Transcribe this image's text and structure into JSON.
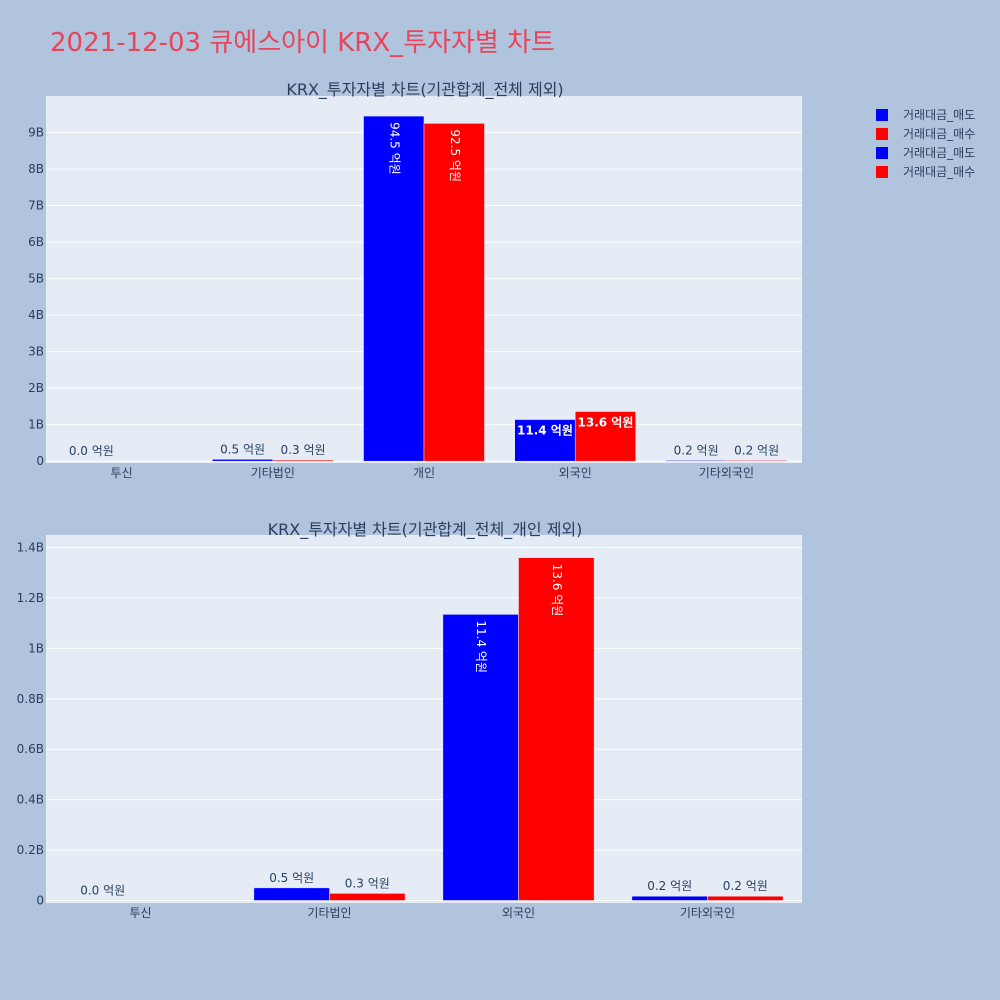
{
  "page_title": "2021-12-03 큐에스아이 KRX_투자자별 차트",
  "legend": [
    {
      "label": "거래대금_매도",
      "color": "#0000ff"
    },
    {
      "label": "거래대금_매수",
      "color": "#ff0000"
    },
    {
      "label": "거래대금_매도",
      "color": "#0000ff"
    },
    {
      "label": "거래대금_매수",
      "color": "#ff0000"
    }
  ],
  "chart_data": [
    {
      "type": "bar",
      "title": "KRX_투자자별 차트(기관합계_전체 제외)",
      "categories": [
        "투신",
        "기타법인",
        "개인",
        "외국인",
        "기타외국인"
      ],
      "series": [
        {
          "name": "거래대금_매도",
          "color": "#0000ff",
          "values": [
            0.0,
            0.05,
            9.45,
            1.14,
            0.02
          ],
          "labels": [
            "0.0 억원",
            "0.5 억원",
            "94.5 억원",
            "11.4 억원",
            "0.2 억원"
          ]
        },
        {
          "name": "거래대금_매수",
          "color": "#ff0000",
          "values": [
            0.0,
            0.03,
            9.25,
            1.36,
            0.02
          ],
          "labels": [
            "",
            "0.3 억원",
            "92.5 억원",
            "13.6 억원",
            "0.2 억원"
          ]
        }
      ],
      "ylim": [
        -0.05,
        10.0
      ],
      "yticks": [
        0,
        1,
        2,
        3,
        4,
        5,
        6,
        7,
        8,
        9
      ],
      "ytick_labels": [
        "0",
        "1B",
        "2B",
        "3B",
        "4B",
        "5B",
        "6B",
        "7B",
        "8B",
        "9B"
      ],
      "grid": true
    },
    {
      "type": "bar",
      "title": "KRX_투자자별 차트(기관합계_전체_개인 제외)",
      "categories": [
        "투신",
        "기타법인",
        "외국인",
        "기타외국인"
      ],
      "series": [
        {
          "name": "거래대금_매도",
          "color": "#0000ff",
          "values": [
            0.0,
            0.05,
            1.135,
            0.017
          ],
          "labels": [
            "0.0 억원",
            "0.5 억원",
            "11.4 억원",
            "0.2 억원"
          ]
        },
        {
          "name": "거래대금_매수",
          "color": "#ff0000",
          "values": [
            0.0,
            0.028,
            1.36,
            0.017
          ],
          "labels": [
            "",
            "0.3 억원",
            "13.6 억원",
            "0.2 억원"
          ]
        }
      ],
      "ylim": [
        -0.01,
        1.45
      ],
      "yticks": [
        0,
        0.2,
        0.4,
        0.6,
        0.8,
        1.0,
        1.2,
        1.4
      ],
      "ytick_labels": [
        "0",
        "0.2B",
        "0.4B",
        "0.6B",
        "0.8B",
        "1B",
        "1.2B",
        "1.4B"
      ],
      "grid": true
    }
  ]
}
